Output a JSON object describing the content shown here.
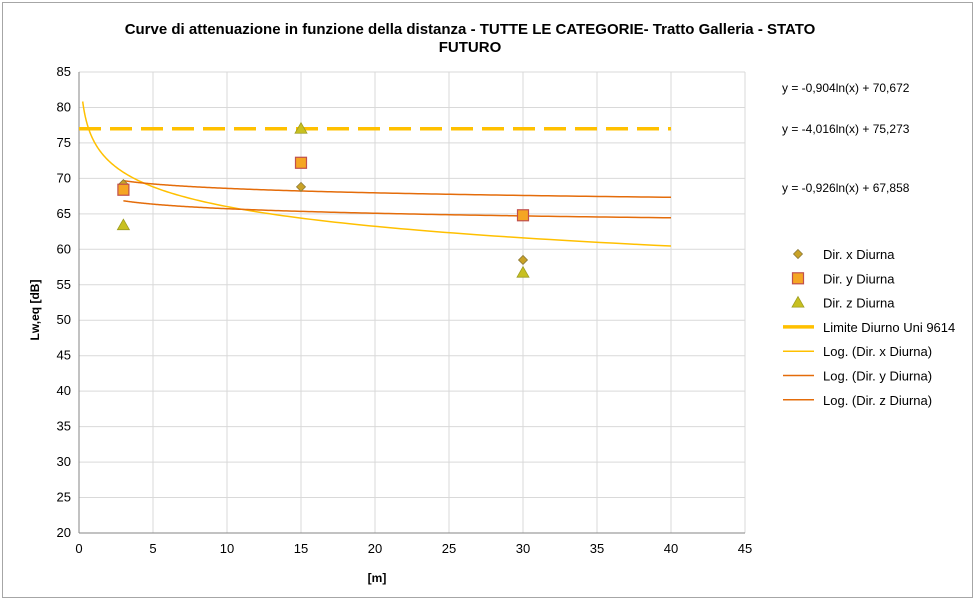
{
  "chart_data": {
    "type": "scatter",
    "title_lines": [
      "Curve di attenuazione in funzione della distanza - TUTTE LE CATEGORIE- Tratto Galleria - STATO",
      "FUTURO"
    ],
    "xlabel": "[m]",
    "ylabel": "Lw,eq [dB]",
    "xlim": [
      0,
      45
    ],
    "ylim": [
      20,
      85
    ],
    "xticks": [
      "0",
      "5",
      "10",
      "15",
      "20",
      "25",
      "30",
      "35",
      "40",
      "45"
    ],
    "yticks": [
      "20",
      "25",
      "30",
      "35",
      "40",
      "45",
      "50",
      "55",
      "60",
      "65",
      "70",
      "75",
      "80",
      "85"
    ],
    "grid": true,
    "legend_position": "right",
    "series": [
      {
        "name": "Dir. x Diurna",
        "marker": "diamond",
        "color": "#c9a227",
        "x": [
          3,
          15,
          30
        ],
        "y": [
          69.2,
          68.8,
          58.5
        ]
      },
      {
        "name": "Dir. y Diurna",
        "marker": "square",
        "color": "#f5a623",
        "x": [
          3,
          15,
          30
        ],
        "y": [
          68.4,
          72.2,
          64.8
        ]
      },
      {
        "name": "Dir. z Diurna",
        "marker": "triangle",
        "color": "#c8c020",
        "x": [
          3,
          15,
          30
        ],
        "y": [
          63.4,
          77.0,
          56.7
        ]
      }
    ],
    "limit_line": {
      "name": "Limite Diurno Uni 9614",
      "y": 77,
      "x_range": [
        0,
        40
      ],
      "color": "#ffc000"
    },
    "trendlines": [
      {
        "name": "Log. (Dir. x Diurna)",
        "a": -4.016,
        "b": 75.273,
        "x_range": [
          0.25,
          40
        ],
        "color": "#ffc000"
      },
      {
        "name": "Log. (Dir. y Diurna)",
        "a": -0.904,
        "b": 70.672,
        "x_range": [
          3,
          40
        ],
        "color": "#e46c0a"
      },
      {
        "name": "Log. (Dir. z Diurna)",
        "a": -0.926,
        "b": 67.858,
        "x_range": [
          3,
          40
        ],
        "color": "#e46c0a"
      }
    ],
    "equations": [
      "y = -0,904ln(x) + 70,672",
      "y = -4,016ln(x) + 75,273",
      "y = -0,926ln(x) + 67,858"
    ]
  }
}
